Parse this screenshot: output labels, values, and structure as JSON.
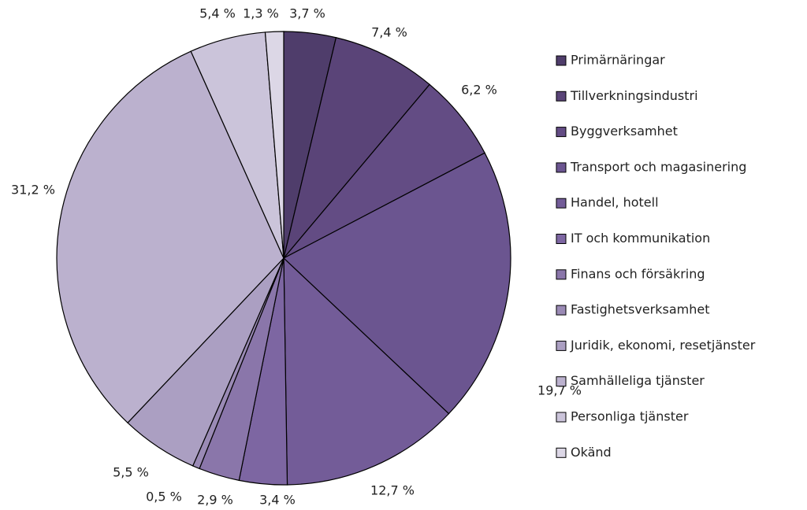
{
  "chart_data": {
    "type": "pie",
    "categories": [
      "Primärnäringar",
      "Tillverkningsindustri",
      "Byggverksamhet",
      "Transport och magasinering",
      "Handel, hotell",
      "IT och kommunikation",
      "Finans och försäkring",
      "Fastighetsverksamhet",
      "Juridik, ekonomi, resetjänster",
      "Samhälleliga tjänster",
      "Personliga tjänster",
      "Okänd"
    ],
    "values": [
      3.7,
      7.4,
      6.2,
      19.7,
      12.7,
      3.4,
      2.9,
      0.5,
      5.5,
      31.2,
      5.4,
      1.3
    ],
    "value_labels": [
      "3,7 %",
      "7,4 %",
      "6,2 %",
      "19,7 %",
      "12,7 %",
      "3,4 %",
      "2,9 %",
      "0,5 %",
      "5,5 %",
      "31,2 %",
      "5,4 %",
      "1,3 %"
    ],
    "colors": [
      "#4f3d6b",
      "#5a4478",
      "#634c84",
      "#6b5590",
      "#735c98",
      "#7d66a2",
      "#8a76aa",
      "#9a8ab5",
      "#ab9fc2",
      "#bbb1ce",
      "#cbc4da",
      "#dcd7e6"
    ],
    "legend": "right"
  }
}
